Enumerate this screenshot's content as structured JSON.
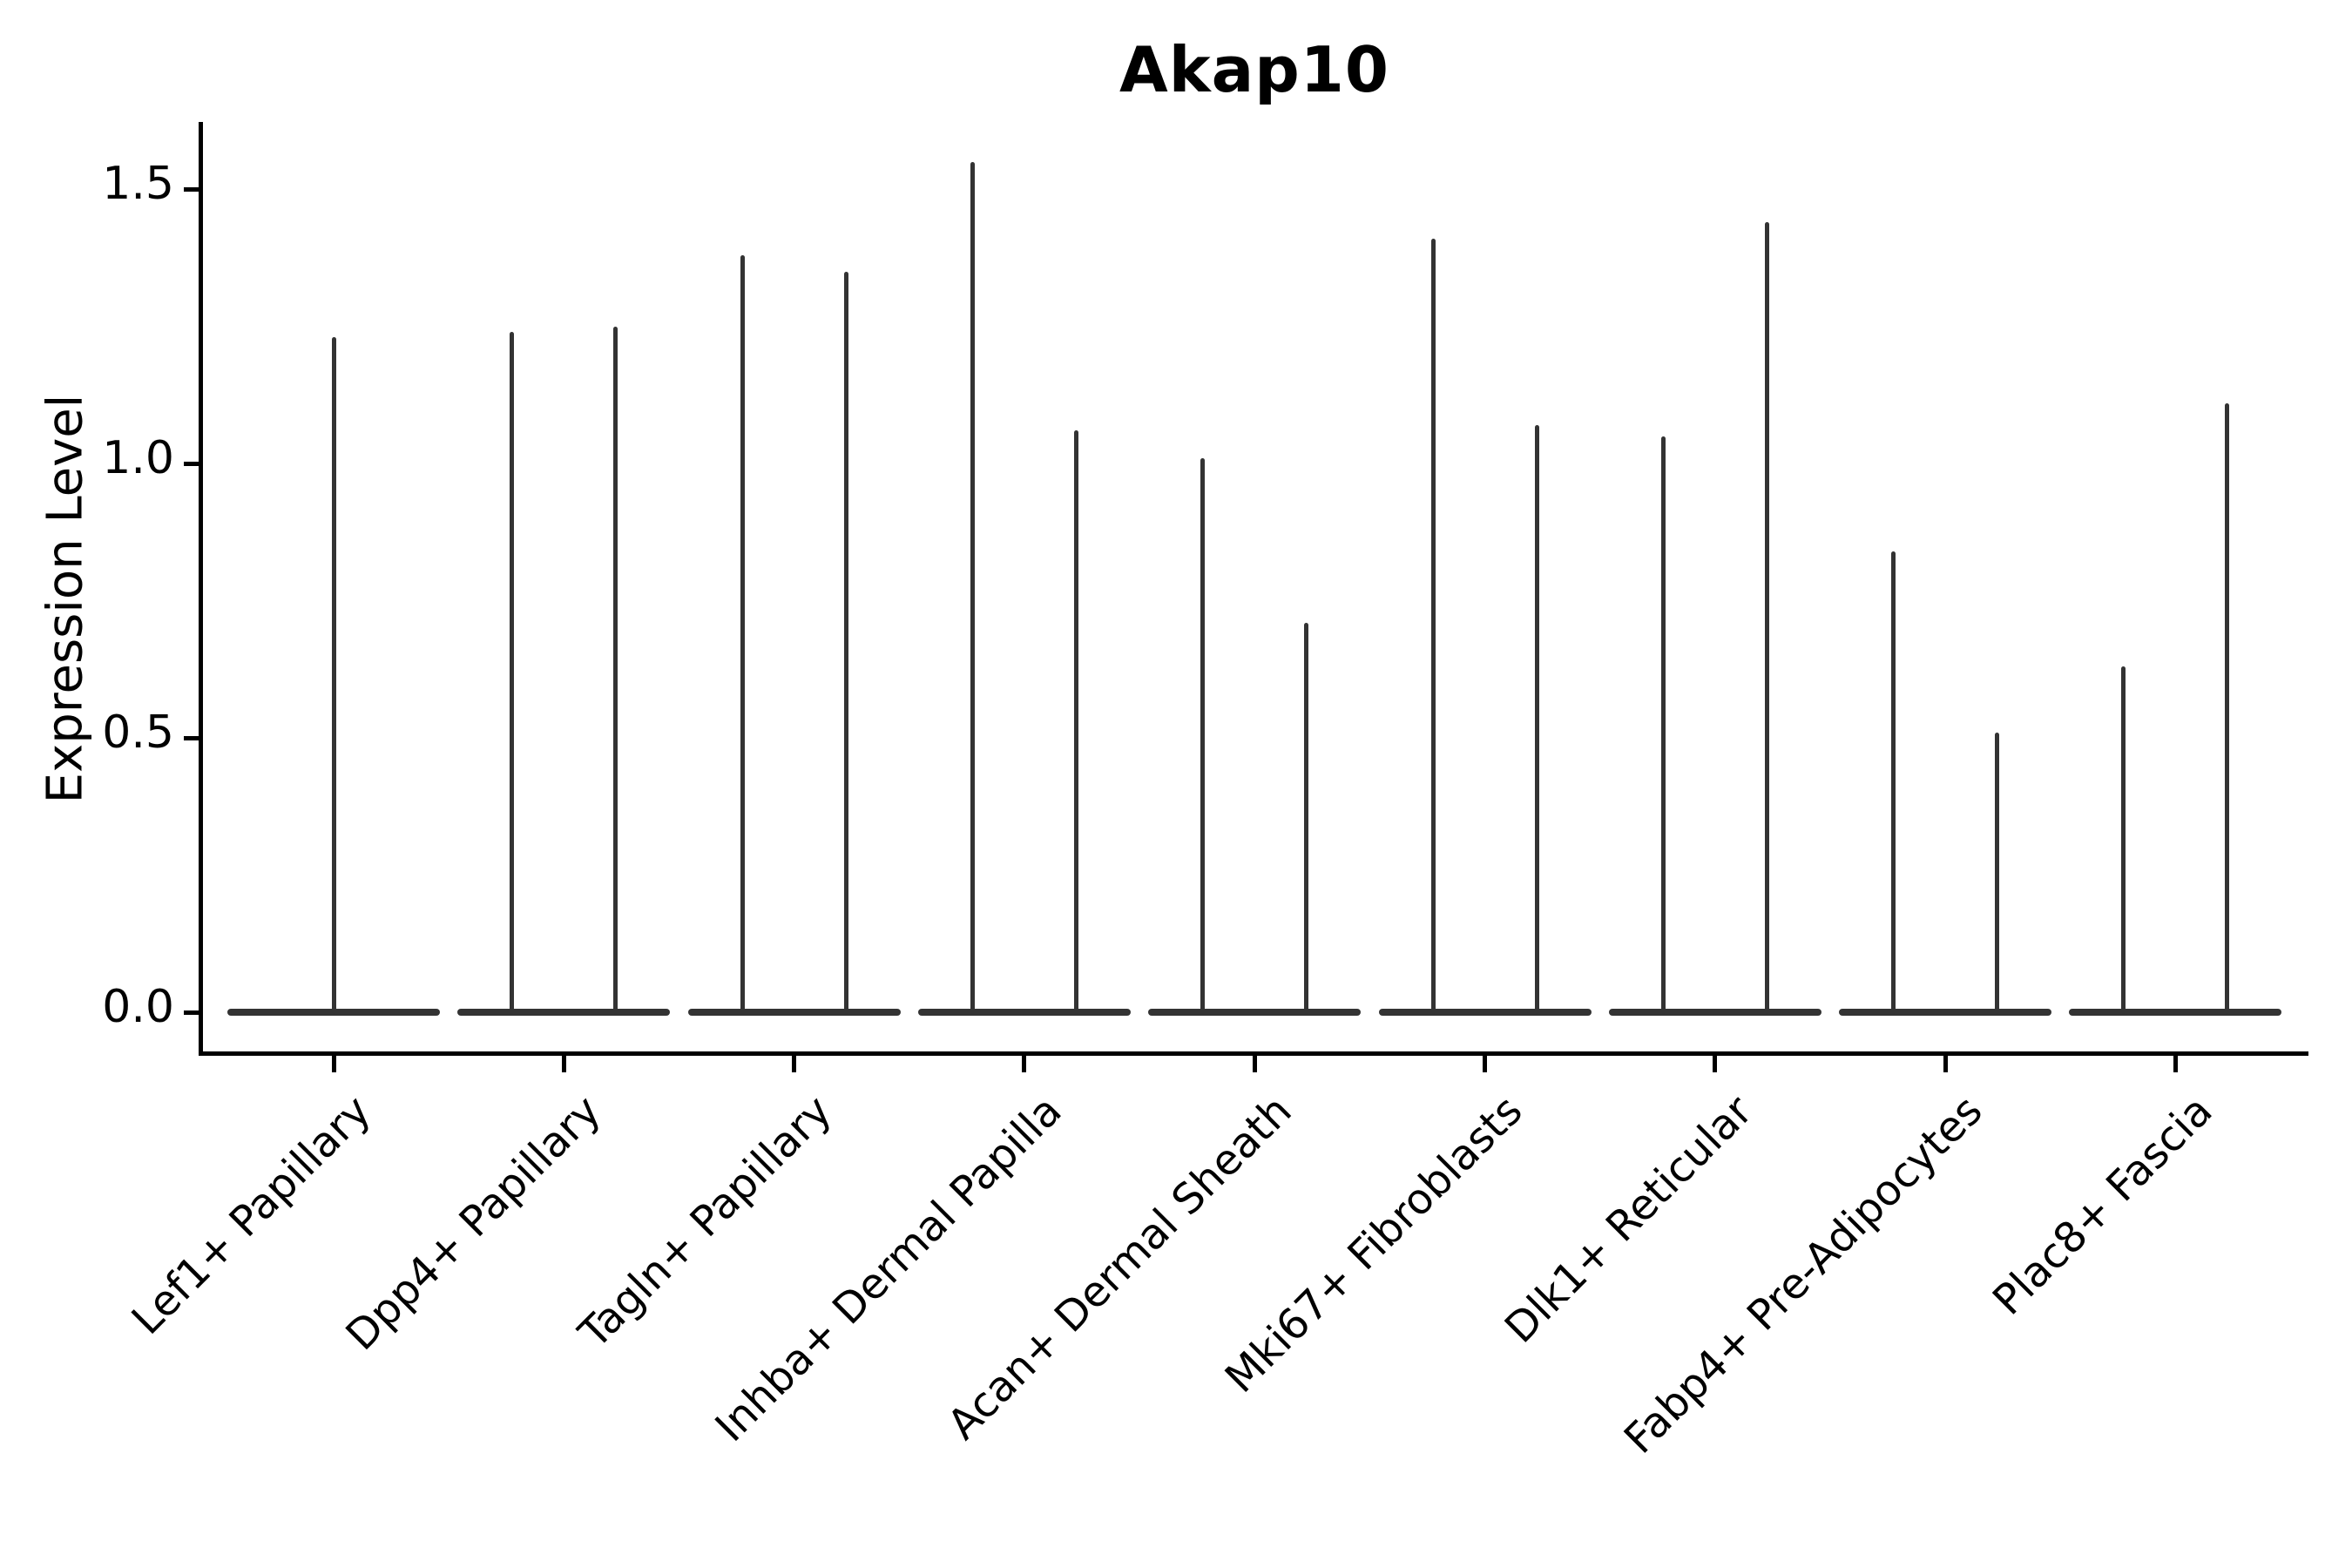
{
  "title": "Akap10",
  "axes": {
    "ylabel": "Expression Level",
    "yticks": [
      {
        "label": "0.0",
        "value": 0.0
      },
      {
        "label": "0.5",
        "value": 0.5
      },
      {
        "label": "1.0",
        "value": 1.0
      },
      {
        "label": "1.5",
        "value": 1.5
      }
    ]
  },
  "colors": {
    "ink": "#000000",
    "violin": "#333333",
    "background": "#ffffff"
  },
  "chart_data": {
    "type": "violin",
    "title": "Akap10",
    "xlabel": "",
    "ylabel": "Expression Level",
    "ylim": [
      0,
      1.62
    ],
    "grid": false,
    "legend": "none",
    "note": "Zero-inflated single-cell expression violins: each category shows a wide flat density bulge at 0 and one or two thin vertical tails reaching the listed maxima.",
    "categories": [
      "Lef1+ Papillary",
      "Dpp4+ Papillary",
      "Tagln+ Papillary",
      "Inhba+ Dermal Papilla",
      "Acan+ Dermal Sheath",
      "Mki67+ Fibroblasts",
      "Dlk1+ Reticular",
      "Fabp4+ Pre-Adipocytes",
      "Plac8+ Fascia"
    ],
    "violins": [
      {
        "category": "Lef1+ Papillary",
        "baseline_value": 0.0,
        "spike_maxima": [
          1.23
        ]
      },
      {
        "category": "Dpp4+ Papillary",
        "baseline_value": 0.0,
        "spike_maxima": [
          1.24,
          1.25
        ]
      },
      {
        "category": "Tagln+ Papillary",
        "baseline_value": 0.0,
        "spike_maxima": [
          1.38,
          1.35
        ]
      },
      {
        "category": "Inhba+ Dermal Papilla",
        "baseline_value": 0.0,
        "spike_maxima": [
          1.55,
          1.06
        ]
      },
      {
        "category": "Acan+ Dermal Sheath",
        "baseline_value": 0.0,
        "spike_maxima": [
          1.01,
          0.71
        ]
      },
      {
        "category": "Mki67+ Fibroblasts",
        "baseline_value": 0.0,
        "spike_maxima": [
          1.41,
          1.07
        ]
      },
      {
        "category": "Dlk1+ Reticular",
        "baseline_value": 0.0,
        "spike_maxima": [
          1.05,
          1.44
        ]
      },
      {
        "category": "Fabp4+ Pre-Adipocytes",
        "baseline_value": 0.0,
        "spike_maxima": [
          0.84,
          0.51
        ]
      },
      {
        "category": "Plac8+ Fascia",
        "baseline_value": 0.0,
        "spike_maxima": [
          0.63,
          1.11
        ]
      }
    ]
  }
}
